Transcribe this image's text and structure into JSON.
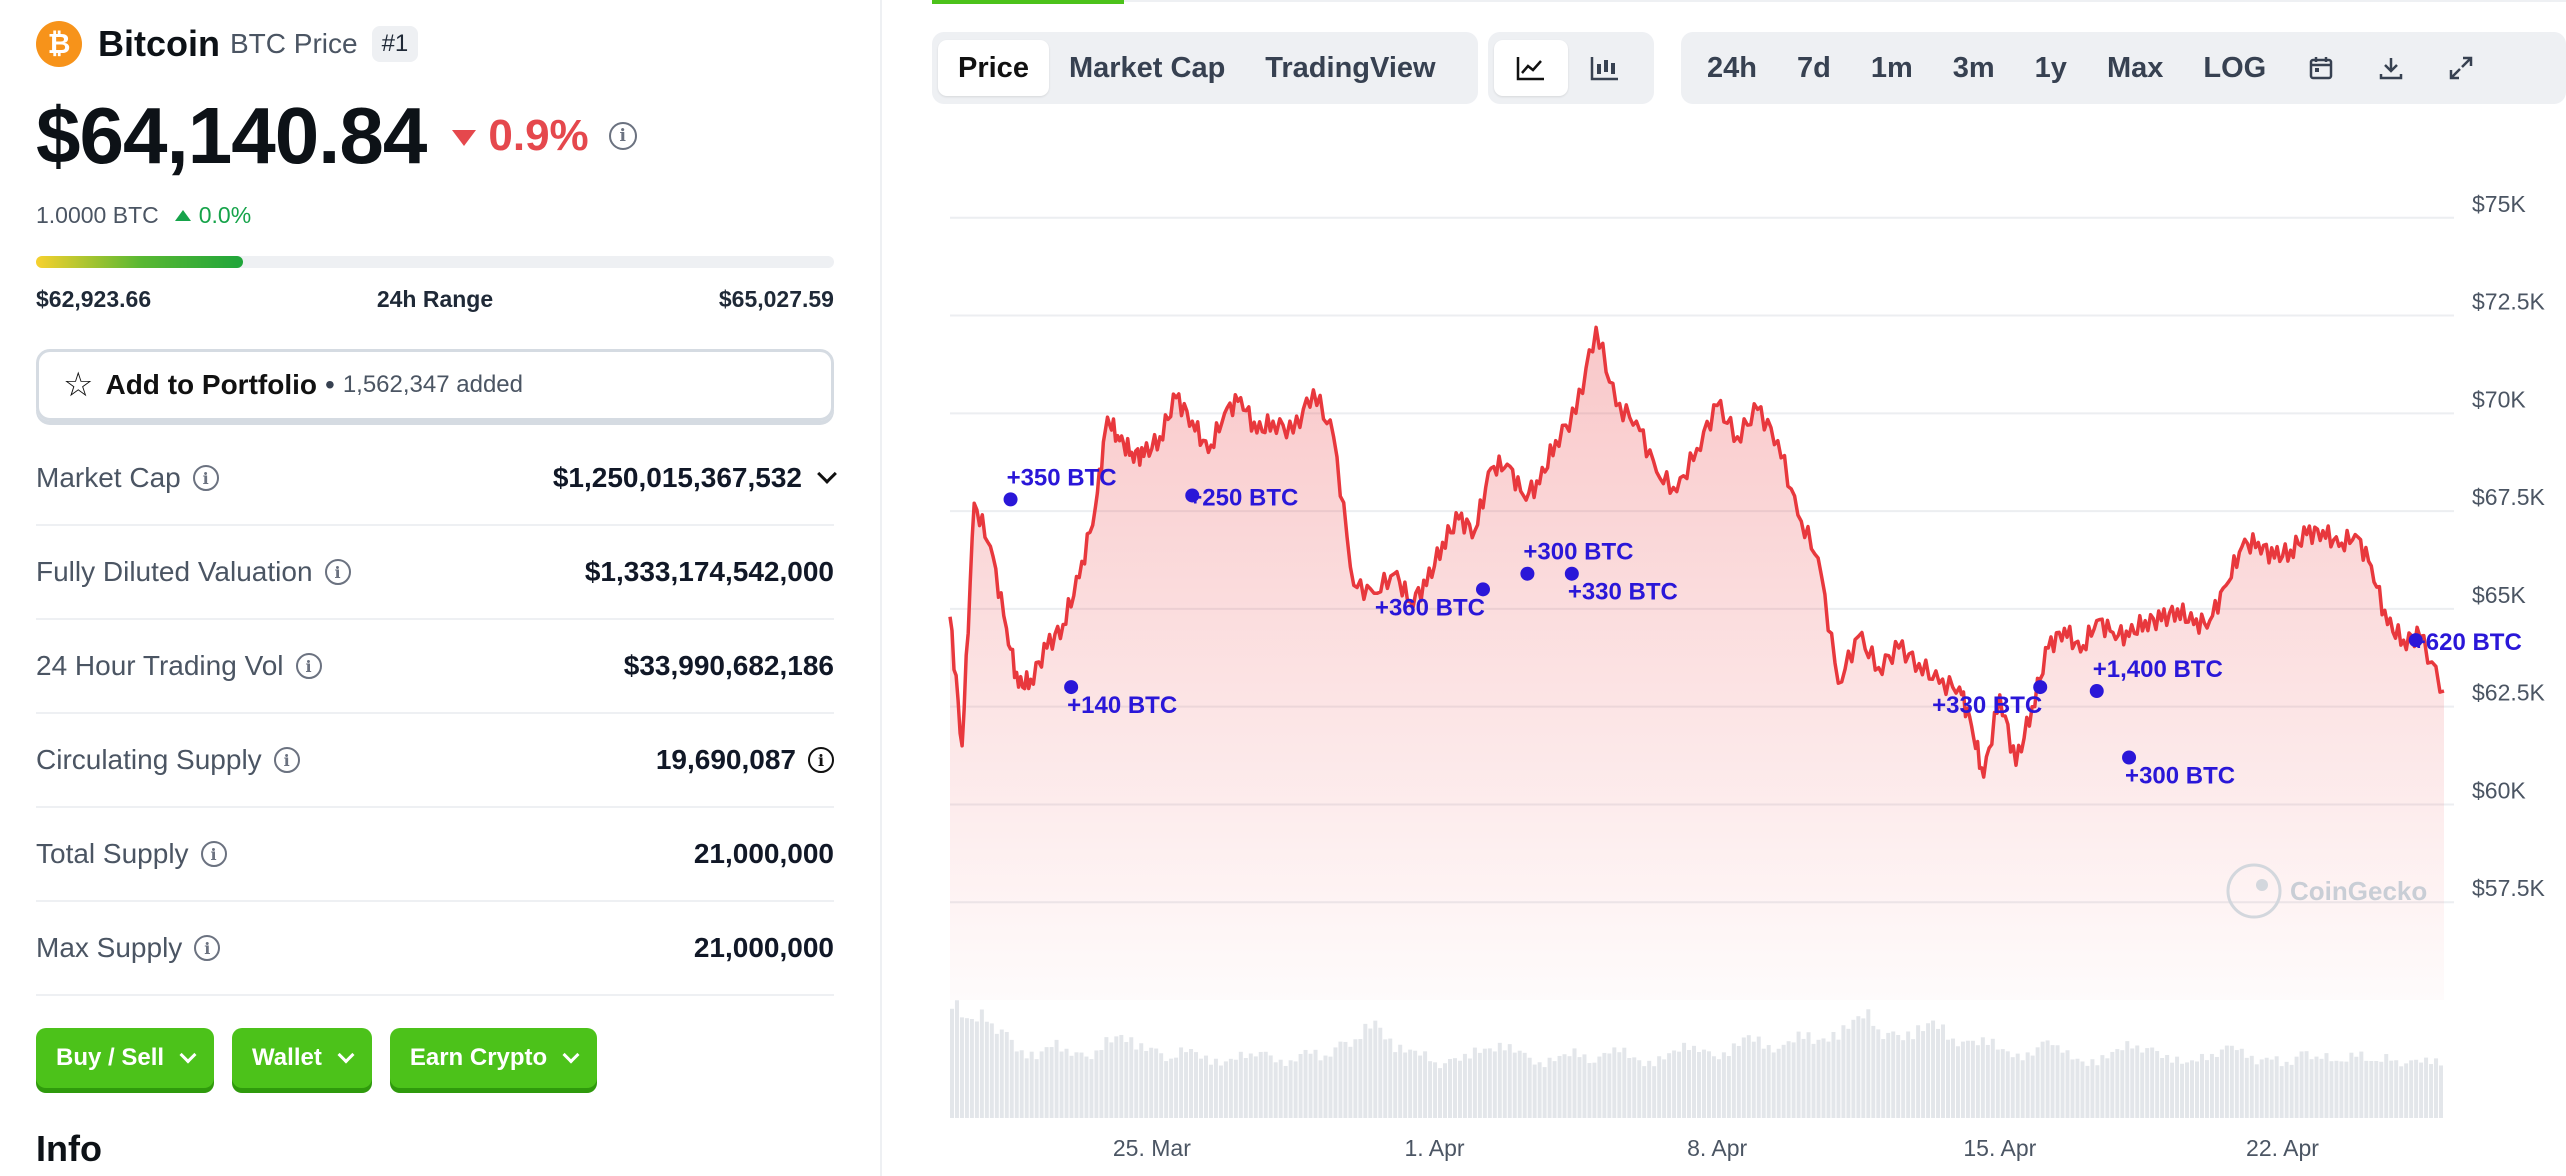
{
  "coin": {
    "name": "Bitcoin",
    "symbol_label": "BTC Price",
    "rank": "#1",
    "logo_glyph": "₿",
    "price": "$64,140.84",
    "change_pct": "0.9%",
    "btc_value": "1.0000 BTC",
    "btc_change": "0.0%"
  },
  "range": {
    "low": "$62,923.66",
    "label": "24h Range",
    "high": "$65,027.59",
    "fill_fraction": 0.26
  },
  "portfolio": {
    "label": "Add to Portfolio",
    "added": "1,562,347 added"
  },
  "stats": [
    {
      "label": "Market Cap",
      "value": "$1,250,015,367,532",
      "suffix": "chevron"
    },
    {
      "label": "Fully Diluted Valuation",
      "value": "$1,333,174,542,000",
      "suffix": ""
    },
    {
      "label": "24 Hour Trading Vol",
      "value": "$33,990,682,186",
      "suffix": ""
    },
    {
      "label": "Circulating Supply",
      "value": "19,690,087",
      "suffix": "info"
    },
    {
      "label": "Total Supply",
      "value": "21,000,000",
      "suffix": ""
    },
    {
      "label": "Max Supply",
      "value": "21,000,000",
      "suffix": ""
    }
  ],
  "actions": [
    "Buy / Sell",
    "Wallet",
    "Earn Crypto"
  ],
  "info_title": "Info",
  "tabs": {
    "price": "Price",
    "market_cap": "Market Cap",
    "tradingview": "TradingView"
  },
  "ranges": [
    "24h",
    "7d",
    "1m",
    "3m",
    "1y",
    "Max",
    "LOG"
  ],
  "watermark": "CoinGecko",
  "colors": {
    "line": "#e8383d",
    "annotation": "#2a17d8",
    "accent": "#4cc21a"
  },
  "chart_data": {
    "type": "line",
    "title": "Bitcoin Price",
    "x_ticks": [
      "25. Mar",
      "1. Apr",
      "8. Apr",
      "15. Apr",
      "22. Apr"
    ],
    "x_tick_days": [
      7,
      14,
      21,
      28,
      35
    ],
    "y_ticks": [
      "$57.5K",
      "$60K",
      "$62.5K",
      "$65K",
      "$67.5K",
      "$70K",
      "$72.5K",
      "$75K"
    ],
    "y_tick_values": [
      57500,
      60000,
      62500,
      65000,
      67500,
      70000,
      72500,
      75000
    ],
    "ylim": [
      55000,
      77500
    ],
    "xlim": [
      2,
      39
    ],
    "x": [
      2,
      2.3,
      2.6,
      3.0,
      3.4,
      3.7,
      4.0,
      4.4,
      4.8,
      5.2,
      5.6,
      5.9,
      6.2,
      6.5,
      6.8,
      7.2,
      7.6,
      8.0,
      8.4,
      8.8,
      9.2,
      9.6,
      10.0,
      10.5,
      11.0,
      11.5,
      12.0,
      12.5,
      13.0,
      13.4,
      13.8,
      14.2,
      14.6,
      15.0,
      15.4,
      15.8,
      16.2,
      16.6,
      17.0,
      17.5,
      18.0,
      18.5,
      19.0,
      19.5,
      20.0,
      20.5,
      21.0,
      21.5,
      22.0,
      22.5,
      23.0,
      23.5,
      24.0,
      24.5,
      25.0,
      25.5,
      26.0,
      26.5,
      27.0,
      27.3,
      27.6,
      28.0,
      28.4,
      28.8,
      29.2,
      29.6,
      30.0,
      30.4,
      30.8,
      31.2,
      31.6,
      32.0,
      32.4,
      32.8,
      33.2,
      33.6,
      34.0,
      34.4,
      34.8,
      35.2,
      35.6,
      36.0,
      36.4,
      36.8,
      37.2,
      37.6,
      38.0,
      38.4,
      39.0
    ],
    "y": [
      64800,
      61500,
      67700,
      66600,
      64500,
      63000,
      63200,
      64000,
      64600,
      65800,
      67600,
      69900,
      69300,
      69000,
      68900,
      69400,
      70400,
      69800,
      69000,
      70000,
      70400,
      69500,
      69800,
      69500,
      70600,
      69400,
      65600,
      65400,
      65900,
      65200,
      65600,
      66700,
      67300,
      67000,
      68600,
      68700,
      67900,
      68200,
      69300,
      70000,
      72200,
      70200,
      69800,
      68500,
      68000,
      69100,
      70200,
      69400,
      70100,
      69300,
      67400,
      66300,
      63100,
      64300,
      63500,
      64000,
      63600,
      63100,
      63000,
      62000,
      60700,
      62800,
      61000,
      62500,
      64000,
      64500,
      63900,
      64700,
      64400,
      64300,
      64700,
      64700,
      65000,
      64600,
      64700,
      65600,
      66600,
      66700,
      66300,
      66500,
      66900,
      67000,
      66600,
      66900,
      66100,
      64600,
      64200,
      64300,
      62900
    ],
    "volume": [
      0.9,
      0.7,
      0.75,
      0.65,
      0.5,
      0.45,
      0.55,
      0.5,
      0.45,
      0.55,
      0.6,
      0.55,
      0.5,
      0.45,
      0.5,
      0.45,
      0.4,
      0.45,
      0.5,
      0.45,
      0.4,
      0.5,
      0.45,
      0.55,
      0.6,
      0.7,
      0.55,
      0.5,
      0.45,
      0.4,
      0.45,
      0.5,
      0.5,
      0.55,
      0.45,
      0.4,
      0.45,
      0.5,
      0.4,
      0.55,
      0.45,
      0.4,
      0.45,
      0.5,
      0.55,
      0.45,
      0.5,
      0.6,
      0.55,
      0.5,
      0.65,
      0.55,
      0.6,
      0.7,
      0.75,
      0.65,
      0.6,
      0.65,
      0.7,
      0.6,
      0.55,
      0.6,
      0.5,
      0.45,
      0.5,
      0.6,
      0.45,
      0.4,
      0.45,
      0.5,
      0.55,
      0.5,
      0.45,
      0.4,
      0.45,
      0.5,
      0.55,
      0.4,
      0.45,
      0.4,
      0.5,
      0.45,
      0.4,
      0.5,
      0.4,
      0.45,
      0.4,
      0.45,
      0.4
    ],
    "annotations": [
      {
        "label": "+350 BTC",
        "x": 3.5,
        "y": 67800,
        "side": "right",
        "offset": "above"
      },
      {
        "label": "+140 BTC",
        "x": 5.0,
        "y": 63000,
        "side": "right",
        "offset": "below"
      },
      {
        "label": "+250 BTC",
        "x": 8.0,
        "y": 67900,
        "side": "right",
        "offset": "level"
      },
      {
        "label": "+360 BTC",
        "x": 15.2,
        "y": 65500,
        "side": "left",
        "offset": "below"
      },
      {
        "label": "+300 BTC",
        "x": 16.3,
        "y": 65900,
        "side": "right",
        "offset": "above"
      },
      {
        "label": "+330 BTC",
        "x": 17.4,
        "y": 65900,
        "side": "right",
        "offset": "below"
      },
      {
        "label": "+330 BTC",
        "x": 29.0,
        "y": 63000,
        "side": "left",
        "offset": "below"
      },
      {
        "label": "+1,400 BTC",
        "x": 30.4,
        "y": 62900,
        "side": "right",
        "offset": "above"
      },
      {
        "label": "+300 BTC",
        "x": 31.2,
        "y": 61200,
        "side": "right",
        "offset": "below"
      },
      {
        "label": "+620 BTC",
        "x": 38.3,
        "y": 64200,
        "side": "right",
        "offset": "level"
      }
    ]
  }
}
